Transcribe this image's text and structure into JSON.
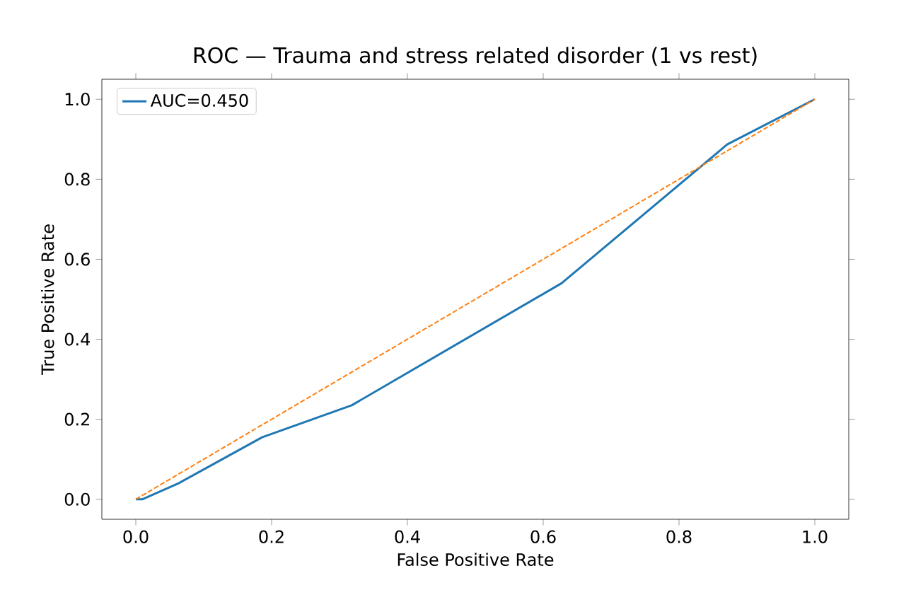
{
  "chart_data": {
    "type": "line",
    "title": "ROC — Trauma and stress related disorder (1 vs rest)",
    "xlabel": "False Positive Rate",
    "ylabel": "True Positive Rate",
    "series": [
      {
        "name": "AUC=0.450",
        "color": "#1f77b4",
        "x": [
          0,
          0.01,
          0.063,
          0.186,
          0.318,
          0.627,
          0.871,
          1
        ],
        "values": [
          0,
          0,
          0.04,
          0.155,
          0.235,
          0.54,
          0.887,
          1
        ]
      },
      {
        "color": "#ff7f0e",
        "line_style": "dashed",
        "x": [
          0,
          1
        ],
        "values": [
          0,
          1
        ]
      }
    ],
    "xlim": [
      -0.05,
      1.05
    ],
    "ylim": [
      -0.05,
      1.05
    ],
    "xticks": [
      {
        "value": 0,
        "label": "0.0"
      },
      {
        "value": 0.2,
        "label": "0.2"
      },
      {
        "value": 0.4,
        "label": "0.4"
      },
      {
        "value": 0.6,
        "label": "0.6"
      },
      {
        "value": 0.8,
        "label": "0.8"
      },
      {
        "value": 1,
        "label": "1.0"
      }
    ],
    "yticks": [
      {
        "value": 0,
        "label": "0.0"
      },
      {
        "value": 0.2,
        "label": "0.2"
      },
      {
        "value": 0.4,
        "label": "0.4"
      },
      {
        "value": 0.6,
        "label": "0.6"
      },
      {
        "value": 0.8,
        "label": "0.8"
      },
      {
        "value": 1,
        "label": "1.0"
      }
    ],
    "legend": "top left",
    "grid": false,
    "marker": "none"
  }
}
